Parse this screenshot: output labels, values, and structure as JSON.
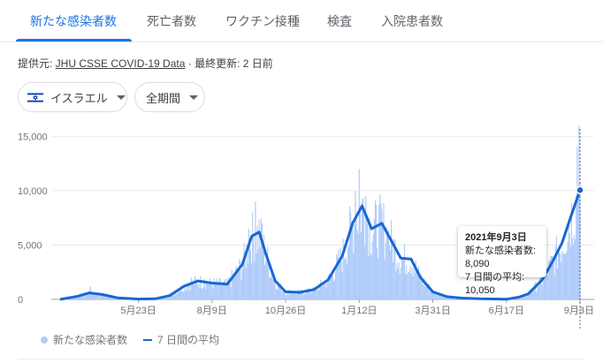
{
  "tabs": [
    {
      "label": "新たな感染者数",
      "active": true
    },
    {
      "label": "死亡者数",
      "active": false
    },
    {
      "label": "ワクチン接種",
      "active": false
    },
    {
      "label": "検査",
      "active": false
    },
    {
      "label": "入院患者数",
      "active": false
    }
  ],
  "source": {
    "prefix": "提供元: ",
    "link_text": "JHU CSSE COVID-19 Data",
    "separator": " · ",
    "updated": "最終更新: 2 日前"
  },
  "filters": {
    "country": "イスラエル",
    "country_flag": "flag-israel-icon",
    "period": "全期間"
  },
  "tooltip": {
    "date": "2021年9月3日",
    "new_cases_line": "新たな感染者数: 8,090",
    "avg_line": "7 日間の平均: 10,050"
  },
  "legend": {
    "bars_label": "新たな感染者数",
    "line_label": "7 日間の平均"
  },
  "colors": {
    "accent": "#1a73e8",
    "bar": "#aecbfa",
    "line": "#1967d2"
  },
  "chart_data": {
    "type": "bar",
    "title": "",
    "ylim": [
      0,
      16000
    ],
    "y_ticks": [
      0,
      5000,
      10000,
      15000
    ],
    "y_tick_labels": [
      "0",
      "5,000",
      "10,000",
      "15,000"
    ],
    "x_tick_labels": [
      "5月23日",
      "8月9日",
      "10月26日",
      "1月12日",
      "3月31日",
      "6月17日",
      "9月3日"
    ],
    "grid": true,
    "legend_position": "bottom-left",
    "series": [
      {
        "name": "7 日間の平均",
        "kind": "line",
        "points": [
          [
            "2020-03-01",
            0
          ],
          [
            "2020-03-20",
            300
          ],
          [
            "2020-04-01",
            600
          ],
          [
            "2020-04-15",
            450
          ],
          [
            "2020-05-01",
            150
          ],
          [
            "2020-05-23",
            30
          ],
          [
            "2020-06-10",
            60
          ],
          [
            "2020-06-25",
            350
          ],
          [
            "2020-07-10",
            1200
          ],
          [
            "2020-07-25",
            1700
          ],
          [
            "2020-08-09",
            1500
          ],
          [
            "2020-08-25",
            1400
          ],
          [
            "2020-09-10",
            3200
          ],
          [
            "2020-09-20",
            5800
          ],
          [
            "2020-09-28",
            6200
          ],
          [
            "2020-10-05",
            4200
          ],
          [
            "2020-10-15",
            1700
          ],
          [
            "2020-10-26",
            700
          ],
          [
            "2020-11-10",
            650
          ],
          [
            "2020-11-25",
            900
          ],
          [
            "2020-12-10",
            1800
          ],
          [
            "2020-12-25",
            4000
          ],
          [
            "2021-01-05",
            7000
          ],
          [
            "2021-01-15",
            8600
          ],
          [
            "2021-01-25",
            6500
          ],
          [
            "2021-02-05",
            7000
          ],
          [
            "2021-02-15",
            5400
          ],
          [
            "2021-02-25",
            3800
          ],
          [
            "2021-03-08",
            3700
          ],
          [
            "2021-03-18",
            2000
          ],
          [
            "2021-03-31",
            700
          ],
          [
            "2021-04-15",
            250
          ],
          [
            "2021-05-01",
            120
          ],
          [
            "2021-05-20",
            60
          ],
          [
            "2021-06-17",
            20
          ],
          [
            "2021-06-30",
            200
          ],
          [
            "2021-07-10",
            500
          ],
          [
            "2021-07-25",
            1800
          ],
          [
            "2021-08-05",
            3500
          ],
          [
            "2021-08-15",
            5200
          ],
          [
            "2021-08-25",
            7800
          ],
          [
            "2021-09-03",
            10050
          ]
        ]
      },
      {
        "name": "新たな感染者数",
        "kind": "bar",
        "points": [
          [
            "2020-04-02",
            1200
          ],
          [
            "2020-07-18",
            2000
          ],
          [
            "2020-08-01",
            1900
          ],
          [
            "2020-09-17",
            6500
          ],
          [
            "2020-09-24",
            9000
          ],
          [
            "2020-10-01",
            7000
          ],
          [
            "2021-01-08",
            10000
          ],
          [
            "2021-01-12",
            12000
          ],
          [
            "2021-01-19",
            9500
          ],
          [
            "2021-02-04",
            7800
          ],
          [
            "2021-02-11",
            6200
          ],
          [
            "2021-08-31",
            14000
          ],
          [
            "2021-09-02",
            16000
          ],
          [
            "2021-09-03",
            8090
          ]
        ]
      }
    ]
  }
}
